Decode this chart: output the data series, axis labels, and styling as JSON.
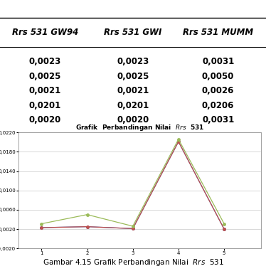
{
  "title": "Grafik  Perbandingan Nilai  $\\it{Rrs}$  531",
  "x": [
    1,
    2,
    3,
    4,
    5
  ],
  "gw94": [
    0.0023,
    0.0025,
    0.0021,
    0.0201,
    0.002
  ],
  "gwi": [
    0.0023,
    0.0025,
    0.0021,
    0.0201,
    0.002
  ],
  "mumm": [
    0.0031,
    0.005,
    0.0026,
    0.0206,
    0.0031
  ],
  "color_gw94": "#4472C4",
  "color_gwi": "#C0504D",
  "color_mumm": "#9BBB59",
  "legend_gw94": "Rrs 531 GW94",
  "legend_gwi": "Rrs 531 GWI",
  "legend_mumm": "Rrs 531 MUMM",
  "ylim": [
    -0.002,
    0.022
  ],
  "yticks": [
    -0.002,
    0.002,
    0.006,
    0.01,
    0.014,
    0.018,
    0.022
  ],
  "table_headers": [
    "Rrs 531 GW94",
    "Rrs 531 GWI",
    "Rrs 531 MUMM"
  ],
  "table_data": [
    [
      "0,0023",
      "0,0023",
      "0,0031"
    ],
    [
      "0,0025",
      "0,0025",
      "0,0050"
    ],
    [
      "0,0021",
      "0,0021",
      "0,0026"
    ],
    [
      "0,0201",
      "0,0201",
      "0,0206"
    ],
    [
      "0,0020",
      "0,0020",
      "0,0031"
    ]
  ],
  "bg_color": "#FFFFFF",
  "grid_color": "#C8C8C8",
  "caption": "Gambar 4.15 Grafik Perbandingan Nilai  $\\it{Rrs}$  531",
  "caption_plain": "Gambar 4.15 Grafik Perbandingan Nilai  Rrs  531"
}
